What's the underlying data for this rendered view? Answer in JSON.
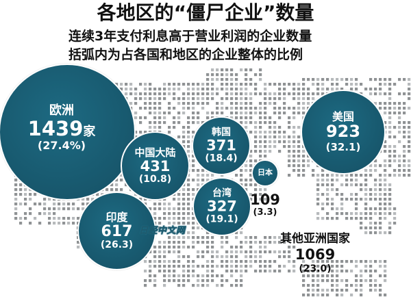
{
  "title": "各地区的“僵尸企业”数量",
  "subtitle": "连续3年支付利息高于营业利润的企业数量",
  "subtitle2": "括弧内为占各国和地区的企业整体的比例",
  "watermark": "日经中文网",
  "colors": {
    "bubble": "#1d6a82",
    "bubble_dark": "#154f63",
    "map_dot": "#8f9294",
    "map_dot_light": "#b7babc",
    "text_dark": "#111111"
  },
  "chart_data": {
    "type": "bubble-map",
    "title": "各地区的“僵尸企业”数量",
    "subtitle": "连续3年支付利息高于营业利润的企业数量 / 括弧内为占各国和地区的企业整体的比例",
    "regions": [
      {
        "name": "欧洲",
        "value": 1439,
        "value_label": "1439",
        "unit": "家",
        "share_label": "(27.4%)",
        "share": 27.4,
        "style": "bubble"
      },
      {
        "name": "美国",
        "value": 923,
        "value_label": "923",
        "unit": "",
        "share_label": "(32.1)",
        "share": 32.1,
        "style": "bubble"
      },
      {
        "name": "中国大陆",
        "value": 431,
        "value_label": "431",
        "unit": "",
        "share_label": "(10.8)",
        "share": 10.8,
        "style": "bubble"
      },
      {
        "name": "韩国",
        "value": 371,
        "value_label": "371",
        "unit": "",
        "share_label": "(18.4)",
        "share": 18.4,
        "style": "bubble"
      },
      {
        "name": "台湾",
        "value": 327,
        "value_label": "327",
        "unit": "",
        "share_label": "(19.1)",
        "share": 19.1,
        "style": "bubble"
      },
      {
        "name": "印度",
        "value": 617,
        "value_label": "617",
        "unit": "",
        "share_label": "(26.3)",
        "share": 26.3,
        "style": "bubble"
      },
      {
        "name": "日本",
        "value": 109,
        "value_label": "109",
        "unit": "",
        "share_label": "(3.3)",
        "share": 3.3,
        "style": "small-bubble"
      },
      {
        "name": "其他亚洲国家",
        "value": 1069,
        "value_label": "1069",
        "unit": "",
        "share_label": "(23.0)",
        "share": 23.0,
        "style": "plain"
      }
    ]
  }
}
